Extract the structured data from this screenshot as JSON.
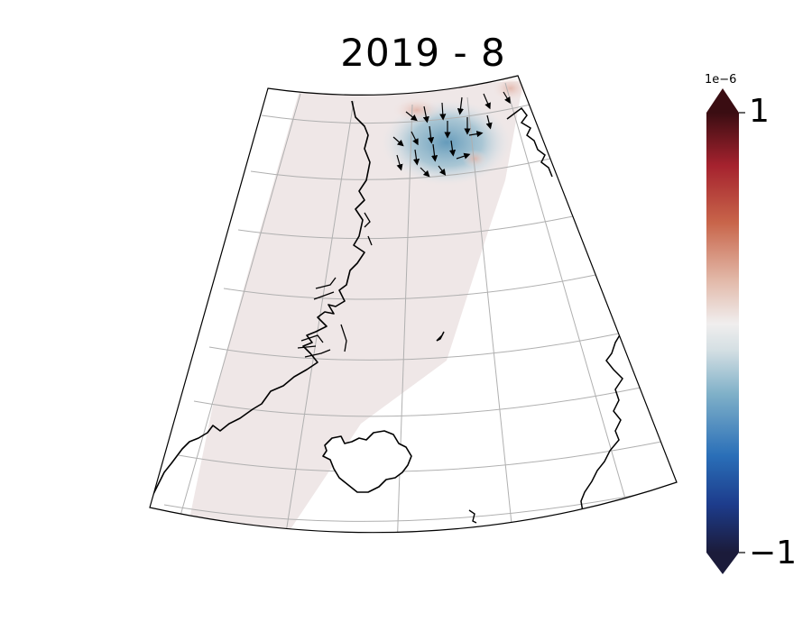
{
  "title": "2019 - 8",
  "colorbar": {
    "exponent_label": "1e−6",
    "max_label": "1",
    "min_label": "−1",
    "colormap": "balance",
    "stops": [
      "#1b1b3a",
      "#1d3c8c",
      "#2a6fb8",
      "#7fb0c8",
      "#d4dfe3",
      "#f0eeee",
      "#e2b8a8",
      "#c8654a",
      "#a5222e",
      "#3a0d12"
    ]
  },
  "map": {
    "projection": "conic",
    "field_background": "#efe6e6",
    "anomaly_color": "#6fa3bf",
    "coastline_color": "#000000",
    "gridline_color": "#b0b0b0"
  }
}
